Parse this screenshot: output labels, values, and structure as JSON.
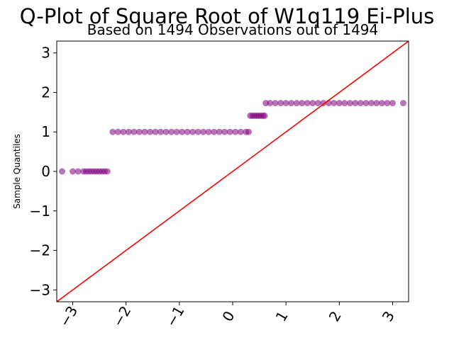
{
  "chart_data": {
    "type": "scatter",
    "title": "Q-Plot of Square Root of W1q119 Ei-Plus",
    "subtitle": "Based on 1494 Observations out of 1494",
    "xlabel": "",
    "ylabel": "Sample Quantiles",
    "xlim": [
      -3.3,
      3.3
    ],
    "ylim": [
      -3.3,
      3.3
    ],
    "xticks": [
      -3,
      -2,
      -1,
      0,
      1,
      2,
      3
    ],
    "yticks": [
      -3,
      -2,
      -1,
      0,
      1,
      2,
      3
    ],
    "xtick_labels": [
      "−3",
      "−2",
      "−1",
      "0",
      "1",
      "2",
      "3"
    ],
    "ytick_labels": [
      "−3",
      "−2",
      "−1",
      "0",
      "1",
      "2",
      "3"
    ],
    "grid": false,
    "legend": "none",
    "colors": {
      "points": "#800080",
      "reference_line": "#ff0000"
    },
    "reference_line": {
      "slope": 1,
      "intercept": 0
    },
    "series": [
      {
        "x": [
          -3.2,
          -3.0,
          -2.9,
          -2.8,
          -2.75,
          -2.7,
          -2.65,
          -2.6,
          -2.55,
          -2.5,
          -2.45,
          -2.4,
          -2.35
        ],
        "y": [
          0,
          0,
          0,
          0,
          0,
          0,
          0,
          0,
          0,
          0,
          0,
          0,
          0
        ]
      },
      {
        "x": [
          -2.25,
          -2.15,
          -2.05,
          -1.95,
          -1.85,
          -1.75,
          -1.65,
          -1.55,
          -1.45,
          -1.35,
          -1.25,
          -1.15,
          -1.05,
          -0.95,
          -0.85,
          -0.75,
          -0.65,
          -0.55,
          -0.45,
          -0.35,
          -0.25,
          -0.15,
          -0.05,
          0.05,
          0.15,
          0.25,
          0.3
        ],
        "y": [
          1,
          1,
          1,
          1,
          1,
          1,
          1,
          1,
          1,
          1,
          1,
          1,
          1,
          1,
          1,
          1,
          1,
          1,
          1,
          1,
          1,
          1,
          1,
          1,
          1,
          1,
          1
        ]
      },
      {
        "x": [
          0.33,
          0.37,
          0.41,
          0.45,
          0.49,
          0.53,
          0.57,
          0.6
        ],
        "y": [
          1.41,
          1.41,
          1.41,
          1.41,
          1.41,
          1.41,
          1.41,
          1.41
        ]
      },
      {
        "x": [
          0.62,
          0.7,
          0.8,
          0.9,
          1.0,
          1.1,
          1.2,
          1.3,
          1.4,
          1.5,
          1.6,
          1.7,
          1.8,
          1.9,
          2.0,
          2.1,
          2.2,
          2.3,
          2.4,
          2.5,
          2.6,
          2.7,
          2.8,
          2.9,
          3.0,
          3.2
        ],
        "y": [
          1.73,
          1.73,
          1.73,
          1.73,
          1.73,
          1.73,
          1.73,
          1.73,
          1.73,
          1.73,
          1.73,
          1.73,
          1.73,
          1.73,
          1.73,
          1.73,
          1.73,
          1.73,
          1.73,
          1.73,
          1.73,
          1.73,
          1.73,
          1.73,
          1.73,
          1.73
        ]
      }
    ]
  }
}
